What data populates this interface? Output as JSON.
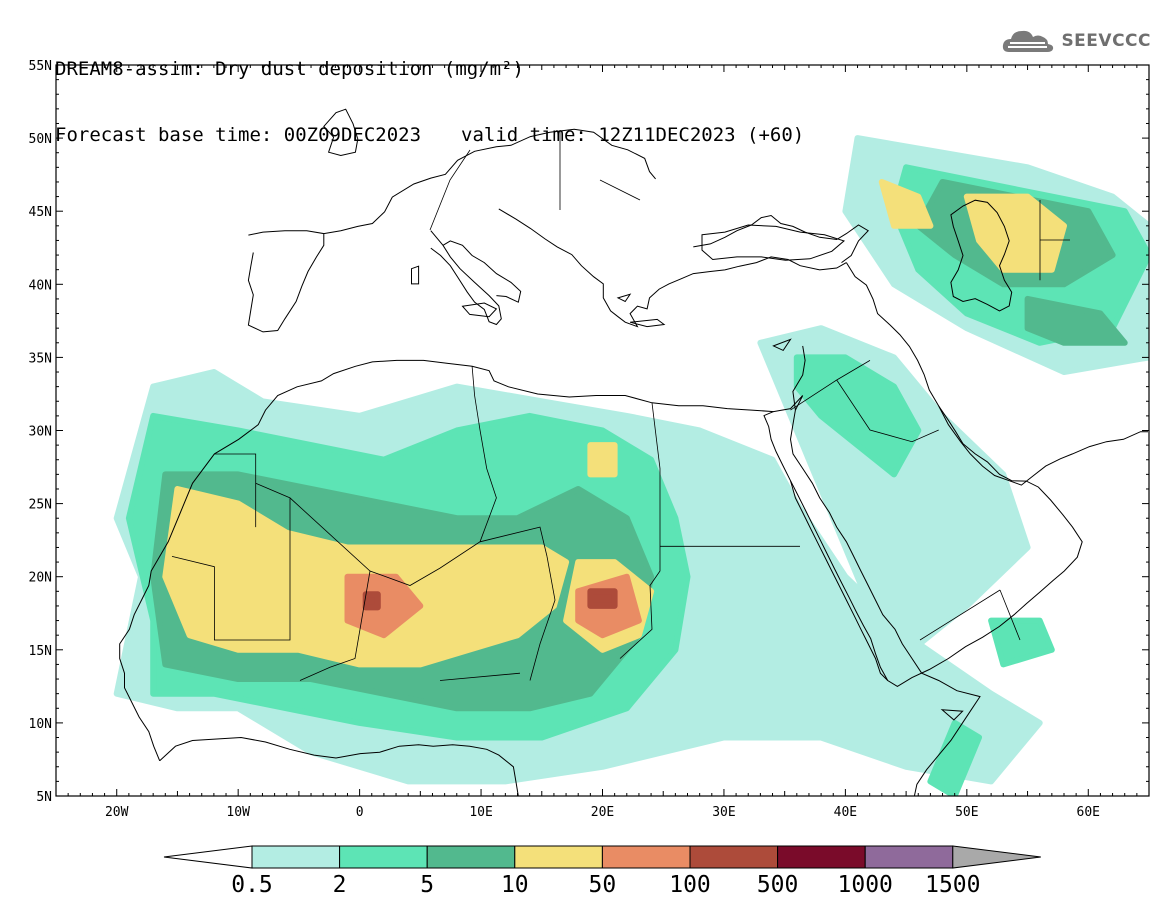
{
  "header": {
    "title": "DREAM8-assim: Dry dust deposition (mg/m²)",
    "base_time": "Forecast base time: 00Z09DEC2023",
    "valid_time": "valid time: 12Z11DEC2023 (+60)"
  },
  "logo": {
    "text": "SEEVCCC",
    "icon": "cloud-icon"
  },
  "map": {
    "projection": "equirectangular",
    "lon_range": [
      -25,
      65
    ],
    "lat_range": [
      5,
      55
    ],
    "lat_labels": [
      "55N",
      "50N",
      "45N",
      "40N",
      "35N",
      "30N",
      "25N",
      "20N",
      "15N",
      "10N",
      "5N"
    ],
    "lat_values": [
      55,
      50,
      45,
      40,
      35,
      30,
      25,
      20,
      15,
      10,
      5
    ],
    "lon_labels": [
      "20W",
      "10W",
      "0",
      "10E",
      "20E",
      "30E",
      "40E",
      "50E",
      "60E"
    ],
    "lon_values": [
      -20,
      -10,
      0,
      10,
      20,
      30,
      40,
      50,
      60
    ],
    "dust_areas": [
      {
        "level": 0,
        "pts": [
          [
            -17,
            33
          ],
          [
            -12,
            34
          ],
          [
            -8,
            32
          ],
          [
            0,
            31
          ],
          [
            8,
            33
          ],
          [
            15,
            32
          ],
          [
            22,
            31
          ],
          [
            28,
            30
          ],
          [
            34,
            28
          ],
          [
            36,
            25
          ],
          [
            40,
            20
          ],
          [
            45,
            16
          ],
          [
            52,
            12
          ],
          [
            56,
            10
          ],
          [
            52,
            6
          ],
          [
            45,
            7
          ],
          [
            38,
            9
          ],
          [
            30,
            9
          ],
          [
            20,
            7
          ],
          [
            12,
            6
          ],
          [
            4,
            6
          ],
          [
            -4,
            8
          ],
          [
            -10,
            11
          ],
          [
            -15,
            11
          ],
          [
            -20,
            12
          ],
          [
            -18,
            20
          ],
          [
            -20,
            24
          ]
        ]
      },
      {
        "level": 0,
        "pts": [
          [
            33,
            36
          ],
          [
            38,
            37
          ],
          [
            44,
            35
          ],
          [
            48,
            31
          ],
          [
            53,
            27
          ],
          [
            55,
            22
          ],
          [
            50,
            18
          ],
          [
            44,
            14
          ],
          [
            40,
            22
          ],
          [
            36,
            30
          ]
        ]
      },
      {
        "level": 0,
        "pts": [
          [
            41,
            50
          ],
          [
            48,
            49
          ],
          [
            55,
            48
          ],
          [
            62,
            46
          ],
          [
            65,
            44
          ],
          [
            65,
            35
          ],
          [
            58,
            34
          ],
          [
            50,
            37
          ],
          [
            44,
            40
          ],
          [
            40,
            45
          ]
        ]
      },
      {
        "level": 1,
        "pts": [
          [
            -17,
            31
          ],
          [
            -10,
            30
          ],
          [
            -4,
            29
          ],
          [
            2,
            28
          ],
          [
            8,
            30
          ],
          [
            14,
            31
          ],
          [
            20,
            30
          ],
          [
            24,
            28
          ],
          [
            26,
            24
          ],
          [
            27,
            20
          ],
          [
            26,
            15
          ],
          [
            22,
            11
          ],
          [
            15,
            9
          ],
          [
            8,
            9
          ],
          [
            0,
            10
          ],
          [
            -6,
            11
          ],
          [
            -12,
            12
          ],
          [
            -17,
            12
          ],
          [
            -17,
            17
          ],
          [
            -19,
            24
          ]
        ]
      },
      {
        "level": 1,
        "pts": [
          [
            45,
            48
          ],
          [
            51,
            47
          ],
          [
            57,
            46
          ],
          [
            63,
            45
          ],
          [
            65,
            42
          ],
          [
            62,
            37
          ],
          [
            56,
            36
          ],
          [
            50,
            38
          ],
          [
            46,
            41
          ],
          [
            44,
            45
          ]
        ]
      },
      {
        "level": 1,
        "pts": [
          [
            36,
            35
          ],
          [
            40,
            35
          ],
          [
            44,
            33
          ],
          [
            46,
            30
          ],
          [
            44,
            27
          ],
          [
            41,
            29
          ],
          [
            38,
            31
          ],
          [
            36,
            33
          ]
        ]
      },
      {
        "level": 1,
        "pts": [
          [
            49,
            10
          ],
          [
            51,
            9
          ],
          [
            49,
            5
          ],
          [
            47,
            6
          ]
        ]
      },
      {
        "level": 1,
        "pts": [
          [
            52,
            17
          ],
          [
            56,
            17
          ],
          [
            57,
            15
          ],
          [
            53,
            14
          ]
        ]
      },
      {
        "level": 2,
        "pts": [
          [
            -16,
            27
          ],
          [
            -10,
            27
          ],
          [
            -4,
            26
          ],
          [
            2,
            25
          ],
          [
            8,
            24
          ],
          [
            13,
            24
          ],
          [
            18,
            26
          ],
          [
            22,
            24
          ],
          [
            24,
            20
          ],
          [
            23,
            16
          ],
          [
            19,
            12
          ],
          [
            14,
            11
          ],
          [
            8,
            11
          ],
          [
            2,
            12
          ],
          [
            -4,
            13
          ],
          [
            -10,
            13
          ],
          [
            -16,
            14
          ],
          [
            -17,
            20
          ]
        ]
      },
      {
        "level": 2,
        "pts": [
          [
            48,
            47
          ],
          [
            54,
            46
          ],
          [
            60,
            45
          ],
          [
            62,
            42
          ],
          [
            58,
            40
          ],
          [
            53,
            40
          ],
          [
            49,
            42
          ],
          [
            46,
            44
          ]
        ]
      },
      {
        "level": 2,
        "pts": [
          [
            55,
            39
          ],
          [
            61,
            38
          ],
          [
            63,
            36
          ],
          [
            58,
            36
          ],
          [
            55,
            37
          ]
        ]
      },
      {
        "level": 3,
        "pts": [
          [
            -15,
            26
          ],
          [
            -10,
            25
          ],
          [
            -6,
            23
          ],
          [
            -1,
            22
          ],
          [
            4,
            22
          ],
          [
            10,
            22
          ],
          [
            15,
            22
          ],
          [
            17,
            21
          ],
          [
            16,
            18
          ],
          [
            13,
            16
          ],
          [
            9,
            15
          ],
          [
            5,
            14
          ],
          [
            0,
            14
          ],
          [
            -5,
            15
          ],
          [
            -10,
            15
          ],
          [
            -14,
            16
          ],
          [
            -16,
            20
          ]
        ]
      },
      {
        "level": 3,
        "pts": [
          [
            18,
            21
          ],
          [
            21,
            21
          ],
          [
            24,
            19
          ],
          [
            23,
            16
          ],
          [
            20,
            15
          ],
          [
            17,
            17
          ]
        ]
      },
      {
        "level": 3,
        "pts": [
          [
            50,
            46
          ],
          [
            55,
            46
          ],
          [
            58,
            44
          ],
          [
            57,
            41
          ],
          [
            53,
            41
          ],
          [
            51,
            43
          ]
        ]
      },
      {
        "level": 3,
        "pts": [
          [
            43,
            47
          ],
          [
            46,
            46
          ],
          [
            47,
            44
          ],
          [
            44,
            44
          ]
        ]
      },
      {
        "level": 3,
        "pts": [
          [
            19,
            29
          ],
          [
            21,
            29
          ],
          [
            21,
            27
          ],
          [
            19,
            27
          ]
        ]
      },
      {
        "level": 4,
        "pts": [
          [
            -1,
            20
          ],
          [
            3,
            20
          ],
          [
            5,
            18
          ],
          [
            2,
            16
          ],
          [
            -1,
            17
          ]
        ]
      },
      {
        "level": 4,
        "pts": [
          [
            18,
            19
          ],
          [
            22,
            20
          ],
          [
            23,
            17
          ],
          [
            20,
            16
          ],
          [
            18,
            17
          ]
        ]
      },
      {
        "level": 5,
        "pts": [
          [
            0.5,
            18.8
          ],
          [
            1.5,
            18.8
          ],
          [
            1.5,
            17.9
          ],
          [
            0.5,
            17.9
          ]
        ]
      },
      {
        "level": 5,
        "pts": [
          [
            19,
            19
          ],
          [
            21,
            19
          ],
          [
            21,
            18
          ],
          [
            19,
            18
          ]
        ]
      }
    ]
  },
  "colorbar": {
    "labels": [
      "0.5",
      "2",
      "5",
      "10",
      "50",
      "100",
      "500",
      "1000",
      "1500"
    ],
    "colors": [
      "#b3ede3",
      "#5de4b5",
      "#52b98e",
      "#f4e07a",
      "#e98c64",
      "#ad4b3a",
      "#7a0b2a",
      "#8f6a9b"
    ],
    "under_color": "#ffffff",
    "over_color": "#a9a9a9"
  }
}
